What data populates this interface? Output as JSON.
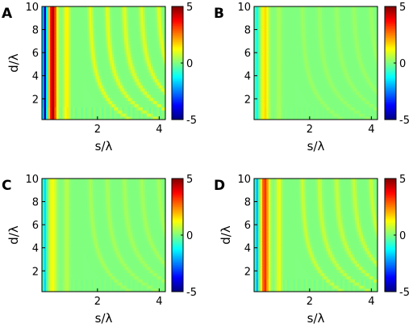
{
  "chart_data": [
    {
      "type": "heatmap",
      "panel_label": "A",
      "xlabel": "s/λ",
      "ylabel": "d/λ",
      "xlim": [
        0.2,
        4.2
      ],
      "ylim": [
        0.2,
        10
      ],
      "xticks": [
        "2",
        "4"
      ],
      "yticks": [
        "2",
        "4",
        "6",
        "8",
        "10"
      ],
      "colorbar": {
        "range": [
          -5,
          5
        ],
        "ticks": [
          "5",
          "0",
          "-5"
        ]
      },
      "pattern": {
        "main_peak_s": 0.55,
        "main_peak_value": 4.5,
        "negative_band_value": -4.5,
        "secondary_amplitude": 1.8
      }
    },
    {
      "type": "heatmap",
      "panel_label": "B",
      "xlabel": "s/λ",
      "ylabel": "",
      "xlim": [
        0.2,
        4.2
      ],
      "ylim": [
        0.2,
        10
      ],
      "xticks": [
        "2",
        "4"
      ],
      "yticks": [
        "2",
        "4",
        "6",
        "8",
        "10"
      ],
      "colorbar": {
        "range": [
          -5,
          5
        ],
        "ticks": [
          "5",
          "0",
          "-5"
        ]
      },
      "pattern": {
        "main_peak_s": 0.55,
        "main_peak_value": 1.6,
        "negative_band_value": -1.2,
        "secondary_amplitude": 0.5
      }
    },
    {
      "type": "heatmap",
      "panel_label": "C",
      "xlabel": "s/λ",
      "ylabel": "d/λ",
      "xlim": [
        0.2,
        4.2
      ],
      "ylim": [
        0.2,
        10
      ],
      "xticks": [
        "2",
        "4"
      ],
      "yticks": [
        "2",
        "4",
        "6",
        "8",
        "10"
      ],
      "colorbar": {
        "range": [
          -5,
          5
        ],
        "ticks": [
          "5",
          "0",
          "-5"
        ]
      },
      "pattern": {
        "main_peak_s": 0.55,
        "main_peak_value": 1.2,
        "negative_band_value": -1.6,
        "secondary_amplitude": 0.7
      }
    },
    {
      "type": "heatmap",
      "panel_label": "D",
      "xlabel": "s/λ",
      "ylabel": "d/λ",
      "xlim": [
        0.2,
        4.2
      ],
      "ylim": [
        0.2,
        10
      ],
      "xticks": [
        "2",
        "4"
      ],
      "yticks": [
        "2",
        "4",
        "6",
        "8",
        "10"
      ],
      "colorbar": {
        "range": [
          -5,
          5
        ],
        "ticks": [
          "5",
          "0",
          "-5"
        ]
      },
      "pattern": {
        "main_peak_s": 0.55,
        "main_peak_value": 3.3,
        "negative_band_value": -2.0,
        "secondary_amplitude": 1.3
      }
    }
  ]
}
